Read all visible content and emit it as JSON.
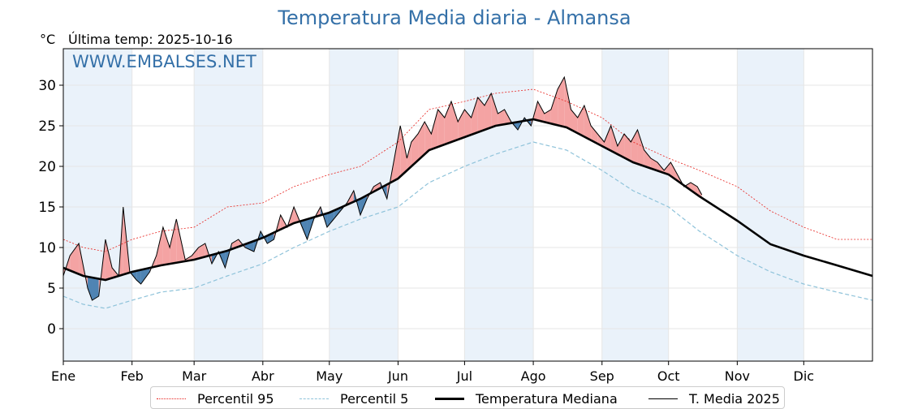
{
  "title": "Temperatura Media diaria - Almansa",
  "unit": "°C",
  "last_temp_label": "Última temp: 2025-10-16",
  "watermark": "WWW.EMBALSES.NET",
  "colors": {
    "title": "#3470a8",
    "p95": "#e8231f",
    "p5": "#8fc3da",
    "median": "#000000",
    "actual": "#000000",
    "above_fill": "#f4a3a3",
    "below_fill": "#4f84b3",
    "band": "#eaf2fa"
  },
  "legend": [
    {
      "key": "p95",
      "label": "Percentil 95",
      "style": "dotted-red"
    },
    {
      "key": "p5",
      "label": "Percentil 5",
      "style": "dashed-lightblue"
    },
    {
      "key": "median",
      "label": "Temperatura Mediana",
      "style": "thick-black"
    },
    {
      "key": "actual",
      "label": "T. Media 2025",
      "style": "thin-black"
    }
  ],
  "chart_data": {
    "type": "line",
    "title": "Temperatura Media diaria - Almansa",
    "ylabel": "°C",
    "xlabel": "",
    "ylim": [
      -4,
      34.5
    ],
    "xlim": [
      1,
      366
    ],
    "yticks": [
      0,
      5,
      10,
      15,
      20,
      25,
      30
    ],
    "x_ticks": [
      {
        "label": "Ene",
        "day": 1
      },
      {
        "label": "Feb",
        "day": 32
      },
      {
        "label": "Mar",
        "day": 60
      },
      {
        "label": "Abr",
        "day": 91
      },
      {
        "label": "May",
        "day": 121
      },
      {
        "label": "Jun",
        "day": 152
      },
      {
        "label": "Jul",
        "day": 182
      },
      {
        "label": "Ago",
        "day": 213
      },
      {
        "label": "Sep",
        "day": 244
      },
      {
        "label": "Oct",
        "day": 274
      },
      {
        "label": "Nov",
        "day": 305
      },
      {
        "label": "Dic",
        "day": 335
      }
    ],
    "grid": true,
    "legend_position": "bottom",
    "series": [
      {
        "key": "median",
        "name": "Temperatura Mediana",
        "x": [
          1,
          10,
          20,
          32,
          45,
          60,
          75,
          91,
          105,
          121,
          135,
          152,
          166,
          182,
          196,
          213,
          228,
          244,
          258,
          274,
          288,
          305,
          320,
          335,
          350,
          366
        ],
        "y": [
          7.5,
          6.5,
          6.0,
          7.0,
          7.8,
          8.5,
          9.6,
          11.2,
          13.0,
          14.3,
          16.0,
          18.5,
          22.0,
          23.6,
          25.0,
          25.8,
          24.8,
          22.5,
          20.5,
          19.0,
          16.3,
          13.3,
          10.4,
          9.0,
          7.8,
          6.5
        ]
      },
      {
        "key": "p95",
        "name": "Percentil 95",
        "x": [
          1,
          10,
          20,
          32,
          45,
          60,
          75,
          91,
          105,
          121,
          135,
          152,
          166,
          182,
          196,
          213,
          228,
          244,
          258,
          274,
          288,
          305,
          320,
          335,
          350,
          366
        ],
        "y": [
          11.0,
          10.0,
          9.5,
          11.0,
          12.0,
          12.5,
          15.0,
          15.5,
          17.5,
          19.0,
          20.0,
          23.0,
          27.0,
          28.0,
          29.0,
          29.5,
          28.0,
          26.0,
          23.0,
          21.0,
          19.5,
          17.5,
          14.5,
          12.5,
          11.0,
          11.0
        ]
      },
      {
        "key": "p5",
        "name": "Percentil 5",
        "x": [
          1,
          10,
          20,
          32,
          45,
          60,
          75,
          91,
          105,
          121,
          135,
          152,
          166,
          182,
          196,
          213,
          228,
          244,
          258,
          274,
          288,
          305,
          320,
          335,
          350,
          366
        ],
        "y": [
          4.0,
          3.0,
          2.5,
          3.5,
          4.5,
          5.0,
          6.5,
          8.0,
          10.0,
          12.0,
          13.5,
          15.0,
          18.0,
          20.0,
          21.5,
          23.0,
          22.0,
          19.5,
          17.0,
          15.0,
          12.0,
          9.0,
          7.0,
          5.5,
          4.5,
          3.5
        ]
      },
      {
        "key": "actual",
        "name": "T. Media 2025",
        "x": [
          1,
          4,
          8,
          12,
          14,
          17,
          20,
          23,
          26,
          28,
          31,
          34,
          36,
          40,
          43,
          46,
          49,
          52,
          56,
          59,
          62,
          65,
          68,
          71,
          74,
          77,
          80,
          83,
          87,
          90,
          93,
          96,
          99,
          102,
          105,
          108,
          111,
          114,
          117,
          120,
          123,
          126,
          129,
          132,
          135,
          138,
          141,
          144,
          147,
          150,
          153,
          156,
          158,
          161,
          164,
          167,
          170,
          173,
          176,
          179,
          182,
          185,
          188,
          191,
          194,
          197,
          200,
          203,
          206,
          209,
          212,
          215,
          218,
          221,
          224,
          227,
          230,
          233,
          236,
          239,
          242,
          245,
          248,
          251,
          254,
          257,
          260,
          263,
          266,
          269,
          272,
          275,
          278,
          281,
          284,
          287,
          289
        ],
        "y": [
          6.5,
          9.0,
          10.5,
          5.0,
          3.5,
          4.0,
          11.0,
          7.5,
          6.5,
          15.0,
          7.0,
          6.0,
          5.5,
          7.0,
          9.0,
          12.5,
          10.0,
          13.5,
          8.5,
          9.0,
          10.0,
          10.5,
          8.0,
          9.5,
          7.5,
          10.5,
          11.0,
          10.0,
          9.5,
          12.0,
          10.5,
          11.0,
          14.0,
          12.5,
          15.0,
          13.0,
          11.0,
          13.5,
          15.0,
          12.5,
          13.5,
          14.5,
          15.5,
          17.0,
          14.0,
          16.0,
          17.5,
          18.0,
          16.0,
          20.5,
          25.0,
          21.0,
          23.0,
          24.0,
          25.5,
          24.0,
          27.0,
          26.0,
          28.0,
          25.5,
          27.0,
          26.0,
          28.5,
          27.5,
          29.0,
          26.5,
          27.0,
          25.5,
          24.5,
          26.0,
          25.0,
          28.0,
          26.5,
          27.0,
          29.5,
          31.0,
          27.0,
          26.0,
          27.5,
          25.0,
          24.0,
          23.0,
          25.0,
          22.5,
          24.0,
          23.0,
          24.5,
          22.0,
          21.0,
          20.5,
          19.5,
          20.5,
          19.0,
          17.5,
          18.0,
          17.5,
          16.5
        ]
      }
    ]
  }
}
